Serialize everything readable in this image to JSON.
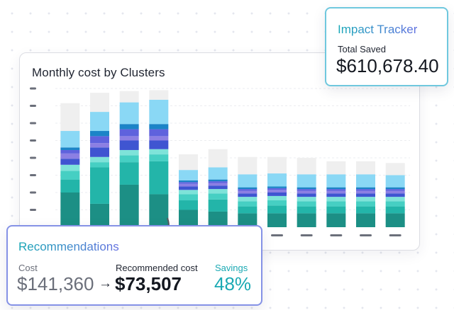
{
  "impact_tracker": {
    "title": "Impact Tracker",
    "label": "Total Saved",
    "value": "$610,678.40"
  },
  "recommendations": {
    "title": "Recommendations",
    "cost_label": "Cost",
    "cost_value": "$141,360",
    "arrow": "→",
    "recommended_label": "Recommended cost",
    "recommended_value": "$73,507",
    "savings_label": "Savings",
    "savings_value": "48%"
  },
  "chart_data": {
    "type": "bar",
    "title": "Monthly cost by Clusters",
    "xlabel": "",
    "ylabel": "",
    "stacked": true,
    "ylim": [
      0,
      8
    ],
    "grid": true,
    "categories": [
      "",
      "",
      "",
      "",
      "",
      "",
      "",
      "",
      "",
      "",
      "",
      ""
    ],
    "series": [
      {
        "color": "#1c8f85",
        "values": [
          2.0,
          1.35,
          2.45,
          1.9,
          1.0,
          0.9,
          0.8,
          0.8,
          0.8,
          0.8,
          0.8,
          0.8
        ]
      },
      {
        "color": "#23b5a9",
        "values": [
          0.75,
          2.1,
          1.3,
          1.9,
          0.55,
          0.7,
          0.4,
          0.45,
          0.4,
          0.4,
          0.4,
          0.4
        ]
      },
      {
        "color": "#46cfc3",
        "values": [
          0.5,
          0.3,
          0.4,
          0.4,
          0.35,
          0.35,
          0.3,
          0.3,
          0.3,
          0.3,
          0.3,
          0.3
        ]
      },
      {
        "color": "#7ee3d9",
        "values": [
          0.35,
          0.3,
          0.3,
          0.3,
          0.25,
          0.25,
          0.25,
          0.25,
          0.25,
          0.25,
          0.25,
          0.25
        ]
      },
      {
        "color": "#3f55d1",
        "values": [
          0.35,
          0.55,
          0.55,
          0.5,
          0.2,
          0.2,
          0.2,
          0.2,
          0.2,
          0.2,
          0.2,
          0.2
        ]
      },
      {
        "color": "#8c7fe3",
        "values": [
          0.3,
          0.25,
          0.25,
          0.25,
          0.15,
          0.15,
          0.15,
          0.15,
          0.15,
          0.15,
          0.15,
          0.15
        ]
      },
      {
        "color": "#5f62dd",
        "values": [
          0.2,
          0.4,
          0.4,
          0.4,
          0.1,
          0.1,
          0.1,
          0.1,
          0.1,
          0.1,
          0.1,
          0.1
        ]
      },
      {
        "color": "#1b84c7",
        "values": [
          0.15,
          0.3,
          0.3,
          0.3,
          0.1,
          0.1,
          0.1,
          0.1,
          0.1,
          0.1,
          0.1,
          0.1
        ]
      },
      {
        "color": "#8ad8f5",
        "values": [
          0.95,
          1.1,
          1.25,
          1.4,
          0.6,
          0.7,
          0.75,
          0.75,
          0.75,
          0.75,
          0.75,
          0.7
        ]
      },
      {
        "color": "#efefef",
        "values": [
          1.6,
          1.1,
          0.65,
          0.55,
          0.9,
          1.05,
          1.0,
          0.95,
          0.95,
          0.75,
          0.75,
          0.7
        ]
      }
    ]
  }
}
